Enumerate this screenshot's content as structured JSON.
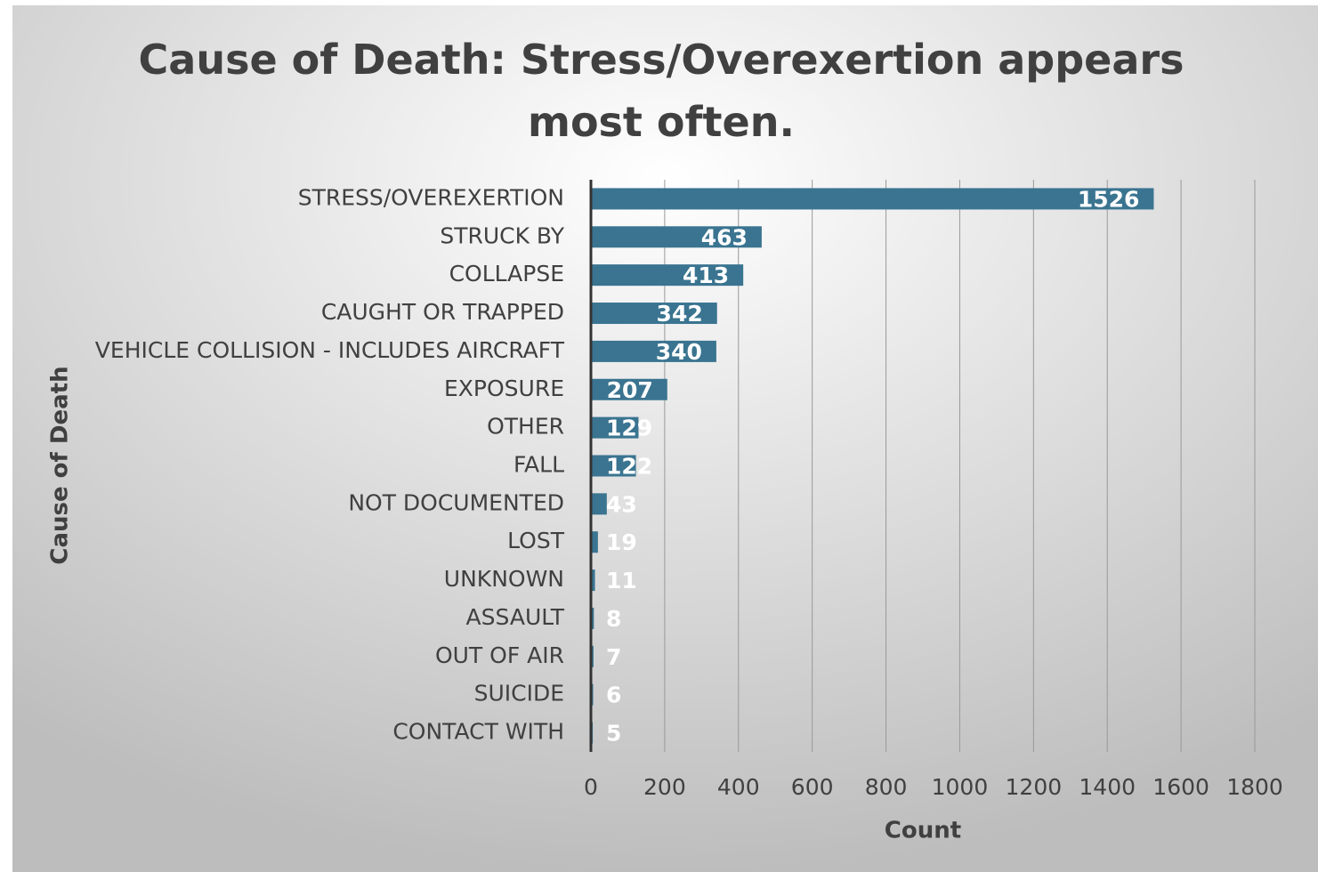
{
  "chart_data": {
    "type": "bar",
    "orientation": "horizontal",
    "title": "Cause of Death: Stress/Overexertion appears most often.",
    "xlabel": "Count",
    "ylabel": "Cause of Death",
    "categories": [
      "STRESS/OVEREXERTION",
      "STRUCK BY",
      "COLLAPSE",
      "CAUGHT OR TRAPPED",
      "VEHICLE COLLISION - INCLUDES AIRCRAFT",
      "EXPOSURE",
      "OTHER",
      "FALL",
      "NOT DOCUMENTED",
      "LOST",
      "UNKNOWN",
      "ASSAULT",
      "OUT OF AIR",
      "SUICIDE",
      "CONTACT WITH"
    ],
    "values": [
      1526,
      463,
      413,
      342,
      340,
      207,
      129,
      122,
      43,
      19,
      11,
      8,
      7,
      6,
      5
    ],
    "color": "#3a7490",
    "xlim": [
      0,
      1800
    ],
    "xticks": [
      0,
      200,
      400,
      600,
      800,
      1000,
      1200,
      1400,
      1600,
      1800
    ],
    "grid": true
  }
}
